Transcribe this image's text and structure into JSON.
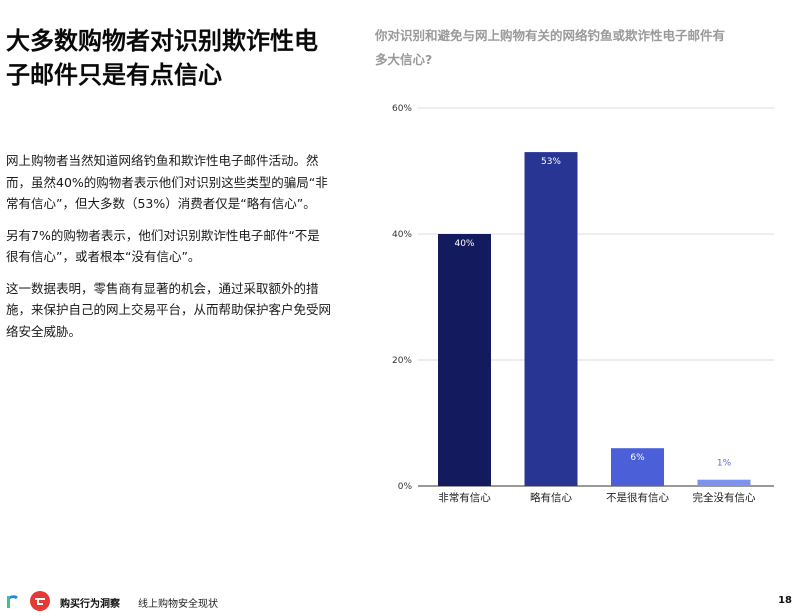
{
  "heading": "大多数购物者对识别欺诈性电子邮件只是有点信心",
  "paragraphs": [
    "网上购物者当然知道网络钓鱼和欺诈性电子邮件活动。然而，虽然40%的购物者表示他们对识别这些类型的骗局“非常有信心”，但大多数（53%）消费者仅是“略有信心”。",
    "另有7%的购物者表示，他们对识别欺诈性电子邮件“不是很有信心”，或者根本“没有信心”。",
    "这一数据表明，零售商有显著的机会，通过采取额外的措施，来保护自己的网上交易平台，从而帮助保护客户免受网络安全威胁。"
  ],
  "chart_question": "你对识别和避免与网上购物有关的网络钓鱼或欺诈性电子邮件有多大信心?",
  "chart_data": {
    "type": "bar",
    "categories": [
      "非常有信心",
      "略有信心",
      "不是很有信心",
      "完全没有信心"
    ],
    "values": [
      40,
      53,
      6,
      1
    ],
    "data_labels": [
      "40%",
      "53%",
      "6%",
      "1%"
    ],
    "colors": [
      "#141a5e",
      "#283593",
      "#4a5fd8",
      "#7b93ee"
    ],
    "label_colors": [
      "#ffffff",
      "#ffffff",
      "#ffffff",
      "#5a6fd0"
    ],
    "y_ticks": [
      0,
      20,
      40,
      60
    ],
    "y_tick_labels": [
      "0%",
      "20%",
      "40%",
      "60%"
    ],
    "ylim": [
      0,
      60
    ],
    "grid": true,
    "title": "",
    "xlabel": "",
    "ylabel": ""
  },
  "footer": {
    "brand": "购买行为洞察",
    "subtitle": "线上购物安全现状",
    "page_number": "18"
  }
}
